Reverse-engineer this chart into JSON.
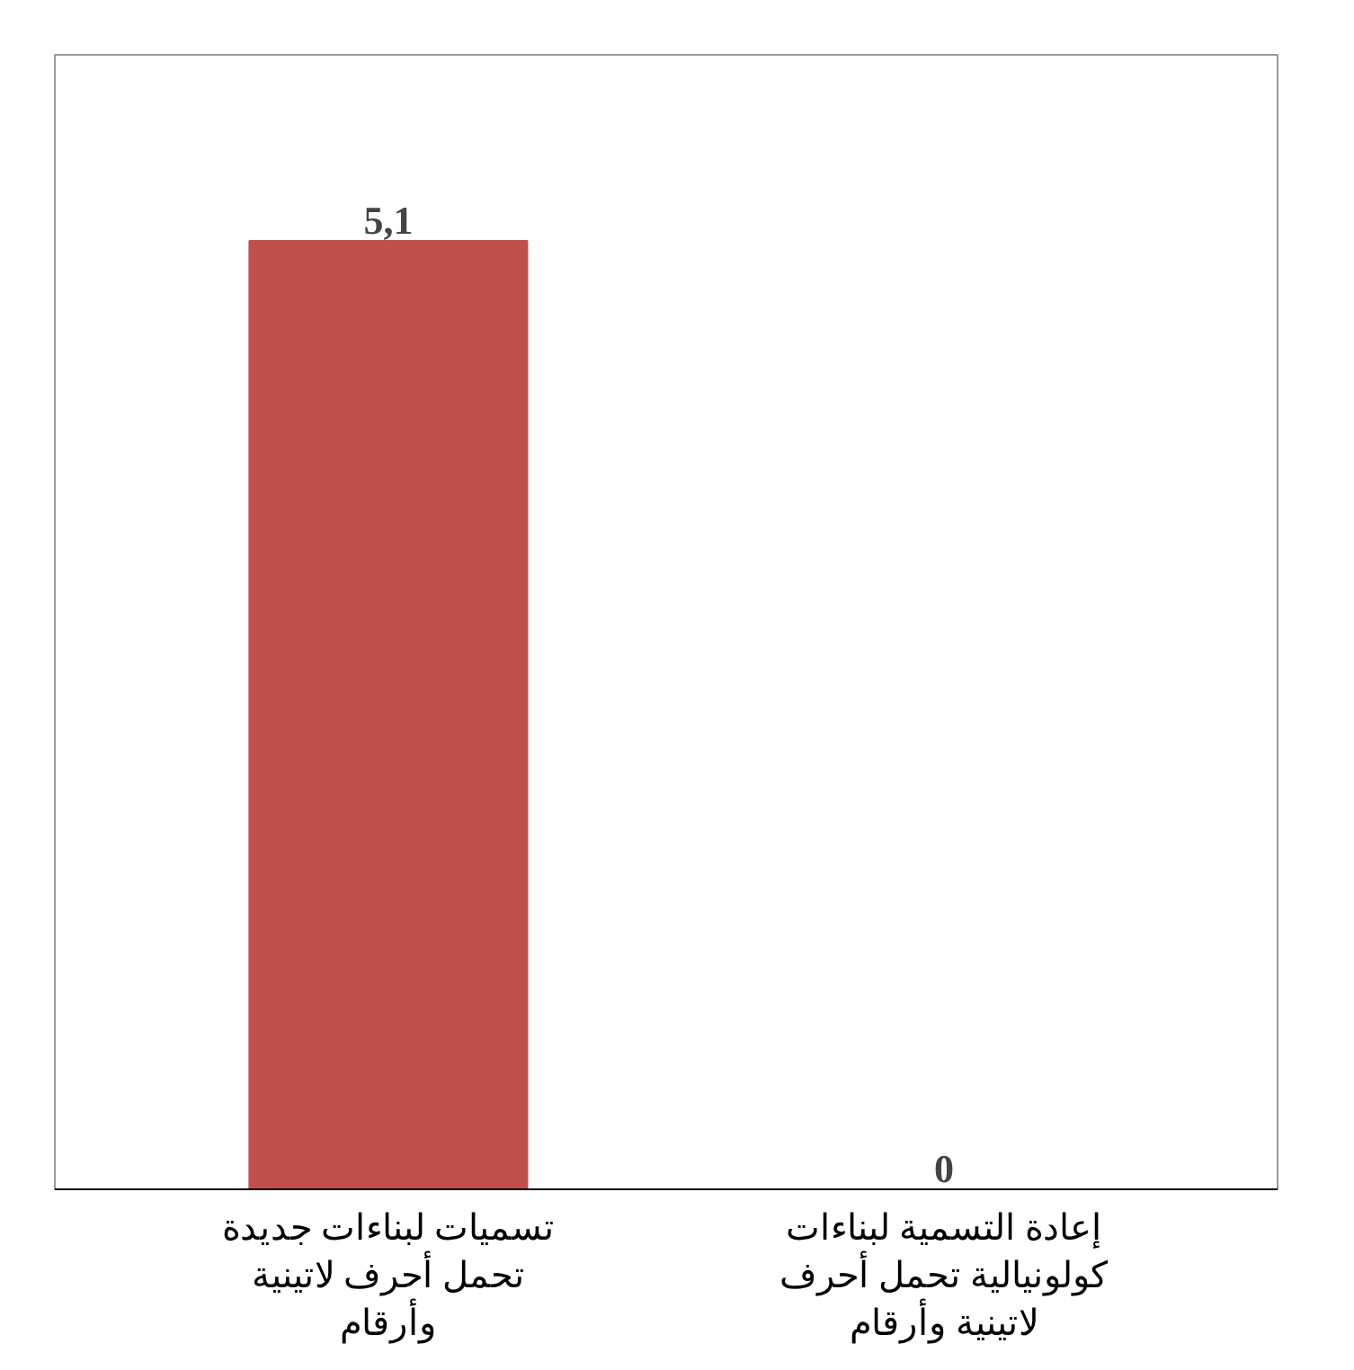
{
  "chart_data": {
    "type": "bar",
    "categories": [
      "تسميات لبناءات جديدة تحمل أحرف لاتينية وأرقام",
      "إعادة التسمية لبناءات كولونيالية تحمل أحرف لاتينية وأرقام"
    ],
    "values": [
      5.1,
      0
    ],
    "value_labels": [
      "5,1",
      "0"
    ],
    "color": "#c0504d",
    "grid": false
  }
}
